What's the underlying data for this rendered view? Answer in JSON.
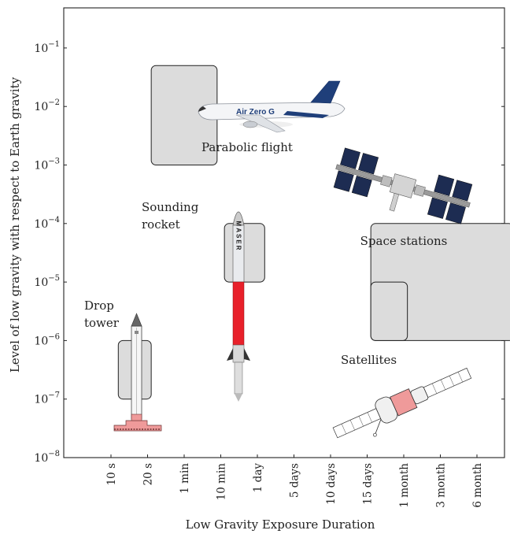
{
  "chart_data": {
    "type": "range-box",
    "xlabel": "Low Gravity Exposure Duration",
    "ylabel": "Level of low gravity with respect to Earth gravity",
    "yscale": "log",
    "ylim": [
      1e-08,
      1
    ],
    "x_categories": [
      "10 s",
      "20 s",
      "1 min",
      "10 min",
      "1 day",
      "5 days",
      "10 days",
      "15 days",
      "1 month",
      "3 month",
      "6 month"
    ],
    "y_ticks": [
      {
        "value": 1e-08,
        "label_base": "10",
        "label_exp": "−8"
      },
      {
        "value": 1e-07,
        "label_base": "10",
        "label_exp": "−7"
      },
      {
        "value": 1e-06,
        "label_base": "10",
        "label_exp": "−6"
      },
      {
        "value": 1e-05,
        "label_base": "10",
        "label_exp": "−5"
      },
      {
        "value": 0.0001,
        "label_base": "10",
        "label_exp": "−4"
      },
      {
        "value": 0.001,
        "label_base": "10",
        "label_exp": "−3"
      },
      {
        "value": 0.01,
        "label_base": "10",
        "label_exp": "−2"
      },
      {
        "value": 0.1,
        "label_base": "10",
        "label_exp": "−1"
      }
    ],
    "regions": [
      {
        "key": "drop-tower",
        "label_lines": [
          "Drop",
          "tower"
        ],
        "x_from": 0.2,
        "x_to": 1.1,
        "y_min": 1e-07,
        "y_max": 1e-06,
        "illustration": "drop-tower-icon"
      },
      {
        "key": "parabolic-flight",
        "label_lines": [
          "Parabolic flight"
        ],
        "x_from": 1.1,
        "x_to": 2.9,
        "y_min": 0.001,
        "y_max": 0.05,
        "illustration": "airplane-icon"
      },
      {
        "key": "sounding-rocket",
        "label_lines": [
          "Sounding",
          "rocket"
        ],
        "x_from": 3.1,
        "x_to": 4.2,
        "y_min": 1e-05,
        "y_max": 0.0001,
        "illustration": "rocket-icon"
      },
      {
        "key": "space-stations",
        "label_lines": [
          "Space stations"
        ],
        "x_from": 7.1,
        "x_to": 11.0,
        "y_min": 1e-06,
        "y_max": 0.0001,
        "illustration": "space-station-icon"
      },
      {
        "key": "satellites",
        "label_lines": [
          "Satellites"
        ],
        "x_from": 7.1,
        "x_to": 8.1,
        "y_min": 1e-06,
        "y_max": 1e-05,
        "illustration": "satellite-icon"
      }
    ],
    "illustration_text": {
      "airline": "Air Zero G",
      "rocket": "MASER"
    },
    "colors": {
      "box_fill": "#dcdcdc",
      "box_stroke": "#222222",
      "rocket_red": "#e8202a",
      "tower_base": "#ef9a9a"
    }
  }
}
